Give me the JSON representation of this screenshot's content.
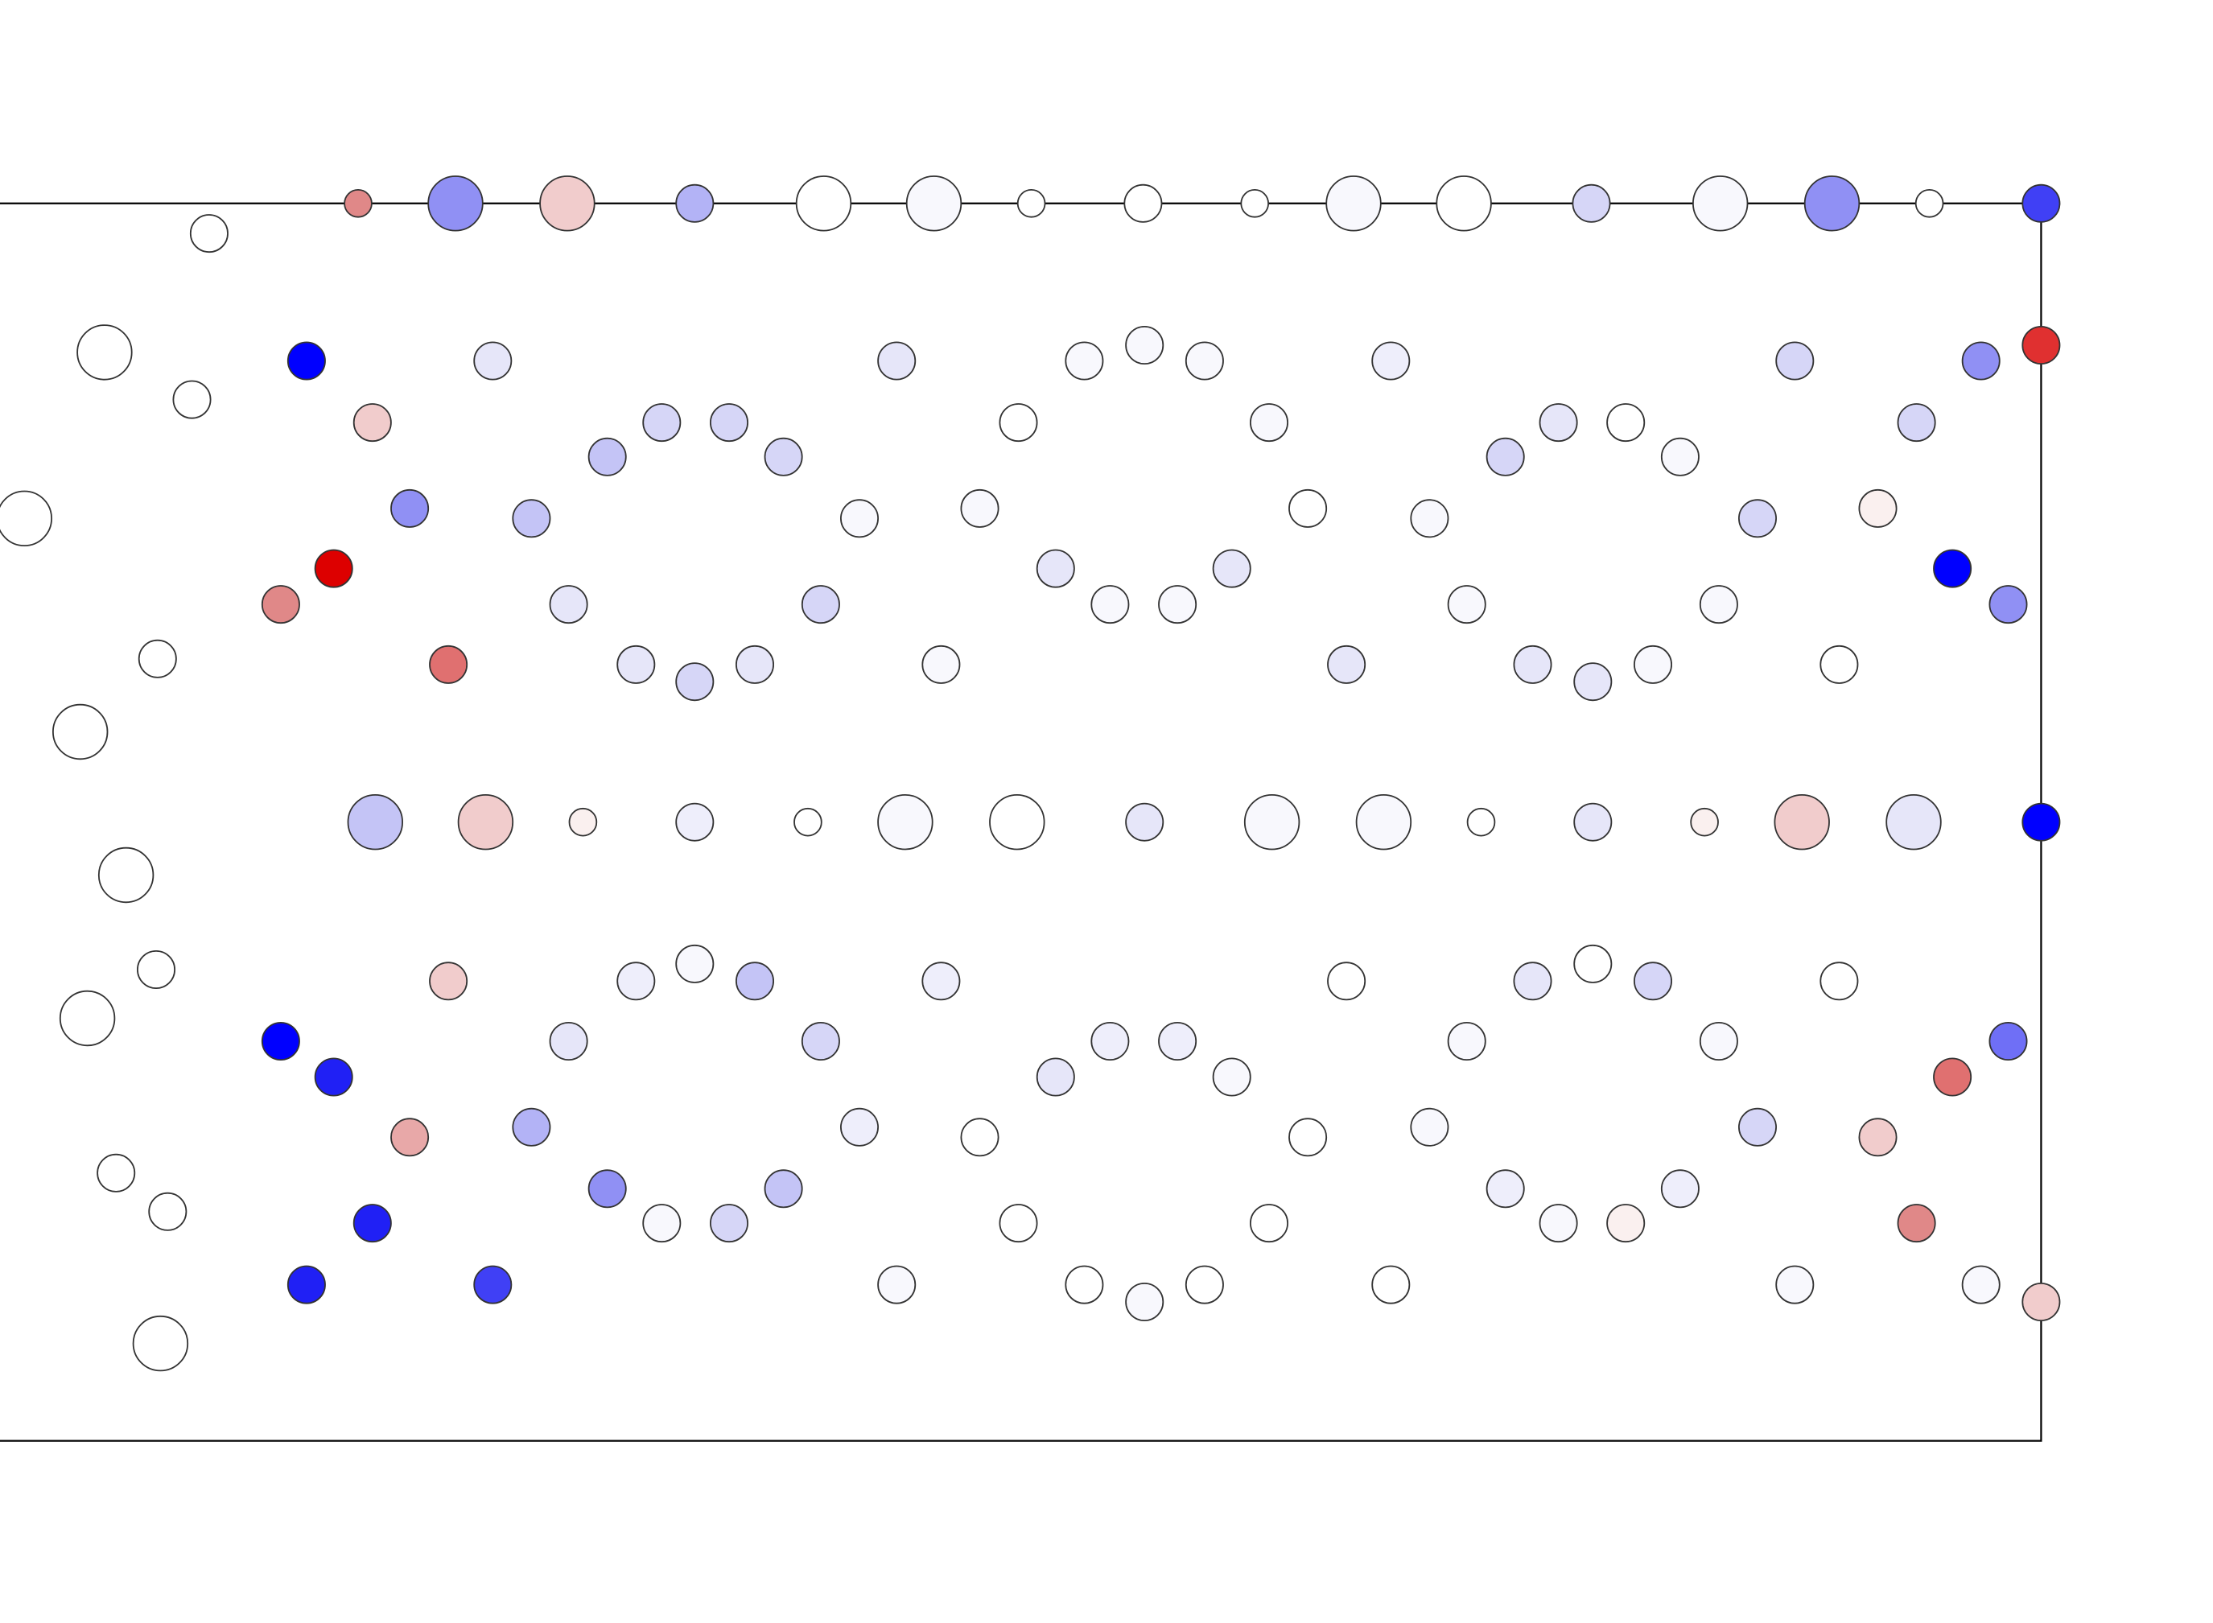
{
  "diagram": {
    "type": "circle-array-heatmap",
    "colors": {
      "strong_blue": "#0000ff",
      "mid_blue": "#9090f4",
      "light_blue": "#e6e6f9",
      "neutral": "#ffffff",
      "light_red": "#f1cccc",
      "mid_red": "#e07070",
      "strong_red": "#dd0000",
      "outline": "#333333",
      "frame": "#000000"
    },
    "legend": null
  }
}
